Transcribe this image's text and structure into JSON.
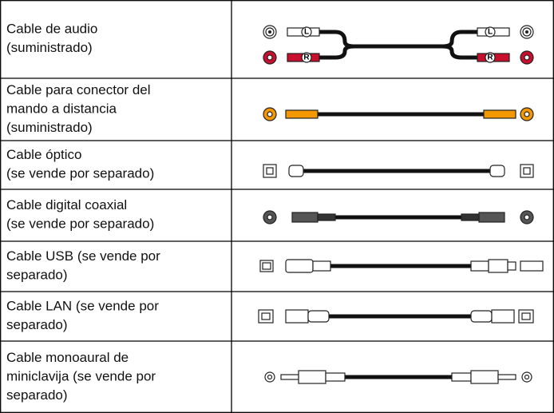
{
  "table": {
    "rows": [
      {
        "lines": [
          "Cable de audio",
          "(suministrado)"
        ]
      },
      {
        "lines": [
          "Cable para conector del",
          "mando a distancia",
          "(suministrado)"
        ]
      },
      {
        "lines": [
          "Cable óptico",
          "(se vende por separado)"
        ]
      },
      {
        "lines": [
          "Cable digital coaxial",
          "(se vende por separado)"
        ]
      },
      {
        "lines": [
          "Cable USB (se vende por",
          "separado)"
        ]
      },
      {
        "lines": [
          "Cable LAN (se vende por",
          "separado)"
        ]
      },
      {
        "lines": [
          "Cable monoaural de",
          "miniclavija (se vende por",
          "separado)"
        ]
      }
    ]
  },
  "connector_labels": {
    "left": "L",
    "right": "R"
  }
}
